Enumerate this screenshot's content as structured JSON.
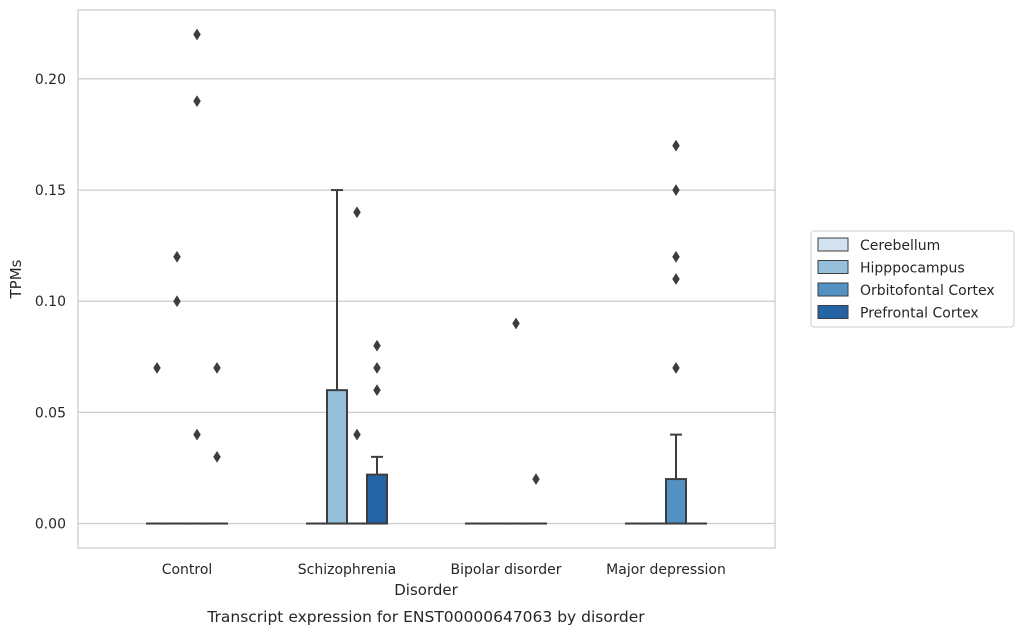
{
  "chart_data": {
    "type": "box",
    "title": "",
    "caption": "Transcript expression for ENST00000647063 by disorder",
    "xlabel": "Disorder",
    "ylabel": "TPMs",
    "ylim": [
      -0.011,
      0.231
    ],
    "yticks": [
      "0.00",
      "0.05",
      "0.10",
      "0.15",
      "0.20"
    ],
    "ytick_values": [
      0.0,
      0.05,
      0.1,
      0.15,
      0.2
    ],
    "grid": "horizontal",
    "legend_position": "right",
    "categories": [
      "Control",
      "Schizophrenia",
      "Bipolar disorder",
      "Major depression"
    ],
    "series": [
      {
        "name": "Cerebellum",
        "color": "#d3e2f0",
        "boxes": [
          {
            "q1": 0,
            "median": 0,
            "q3": 0,
            "whisker_low": 0,
            "whisker_high": 0,
            "outliers": [
              0.07
            ]
          },
          {
            "q1": 0,
            "median": 0,
            "q3": 0,
            "whisker_low": 0,
            "whisker_high": 0,
            "outliers": []
          },
          {
            "q1": 0,
            "median": 0,
            "q3": 0,
            "whisker_low": 0,
            "whisker_high": 0,
            "outliers": []
          },
          {
            "q1": 0,
            "median": 0,
            "q3": 0,
            "whisker_low": 0,
            "whisker_high": 0,
            "outliers": []
          }
        ]
      },
      {
        "name": "Hipppocampus",
        "color": "#95bfdb",
        "boxes": [
          {
            "q1": 0,
            "median": 0,
            "q3": 0,
            "whisker_low": 0,
            "whisker_high": 0,
            "outliers": [
              0.1,
              0.12
            ]
          },
          {
            "q1": 0,
            "median": 0,
            "q3": 0.06,
            "whisker_low": 0,
            "whisker_high": 0.15,
            "outliers": []
          },
          {
            "q1": 0,
            "median": 0,
            "q3": 0,
            "whisker_low": 0,
            "whisker_high": 0,
            "outliers": []
          },
          {
            "q1": 0,
            "median": 0,
            "q3": 0,
            "whisker_low": 0,
            "whisker_high": 0,
            "outliers": []
          }
        ]
      },
      {
        "name": "Orbitofontal Cortex",
        "color": "#5291c3",
        "boxes": [
          {
            "q1": 0,
            "median": 0,
            "q3": 0,
            "whisker_low": 0,
            "whisker_high": 0,
            "outliers": [
              0.04,
              0.19,
              0.22
            ]
          },
          {
            "q1": 0,
            "median": 0,
            "q3": 0,
            "whisker_low": 0,
            "whisker_high": 0,
            "outliers": [
              0.04,
              0.14
            ]
          },
          {
            "q1": 0,
            "median": 0,
            "q3": 0,
            "whisker_low": 0,
            "whisker_high": 0,
            "outliers": [
              0.09
            ]
          },
          {
            "q1": 0,
            "median": 0,
            "q3": 0.02,
            "whisker_low": 0,
            "whisker_high": 0.04,
            "outliers": [
              0.07,
              0.11,
              0.12,
              0.15,
              0.17
            ]
          }
        ]
      },
      {
        "name": "Prefrontal Cortex",
        "color": "#2464a5",
        "boxes": [
          {
            "q1": 0,
            "median": 0,
            "q3": 0,
            "whisker_low": 0,
            "whisker_high": 0,
            "outliers": [
              0.03,
              0.07
            ]
          },
          {
            "q1": 0,
            "median": 0,
            "q3": 0.022,
            "whisker_low": 0,
            "whisker_high": 0.03,
            "outliers": [
              0.06,
              0.07,
              0.08
            ]
          },
          {
            "q1": 0,
            "median": 0,
            "q3": 0,
            "whisker_low": 0,
            "whisker_high": 0,
            "outliers": [
              0.02
            ]
          },
          {
            "q1": 0,
            "median": 0,
            "q3": 0,
            "whisker_low": 0,
            "whisker_high": 0,
            "outliers": []
          }
        ]
      }
    ]
  }
}
